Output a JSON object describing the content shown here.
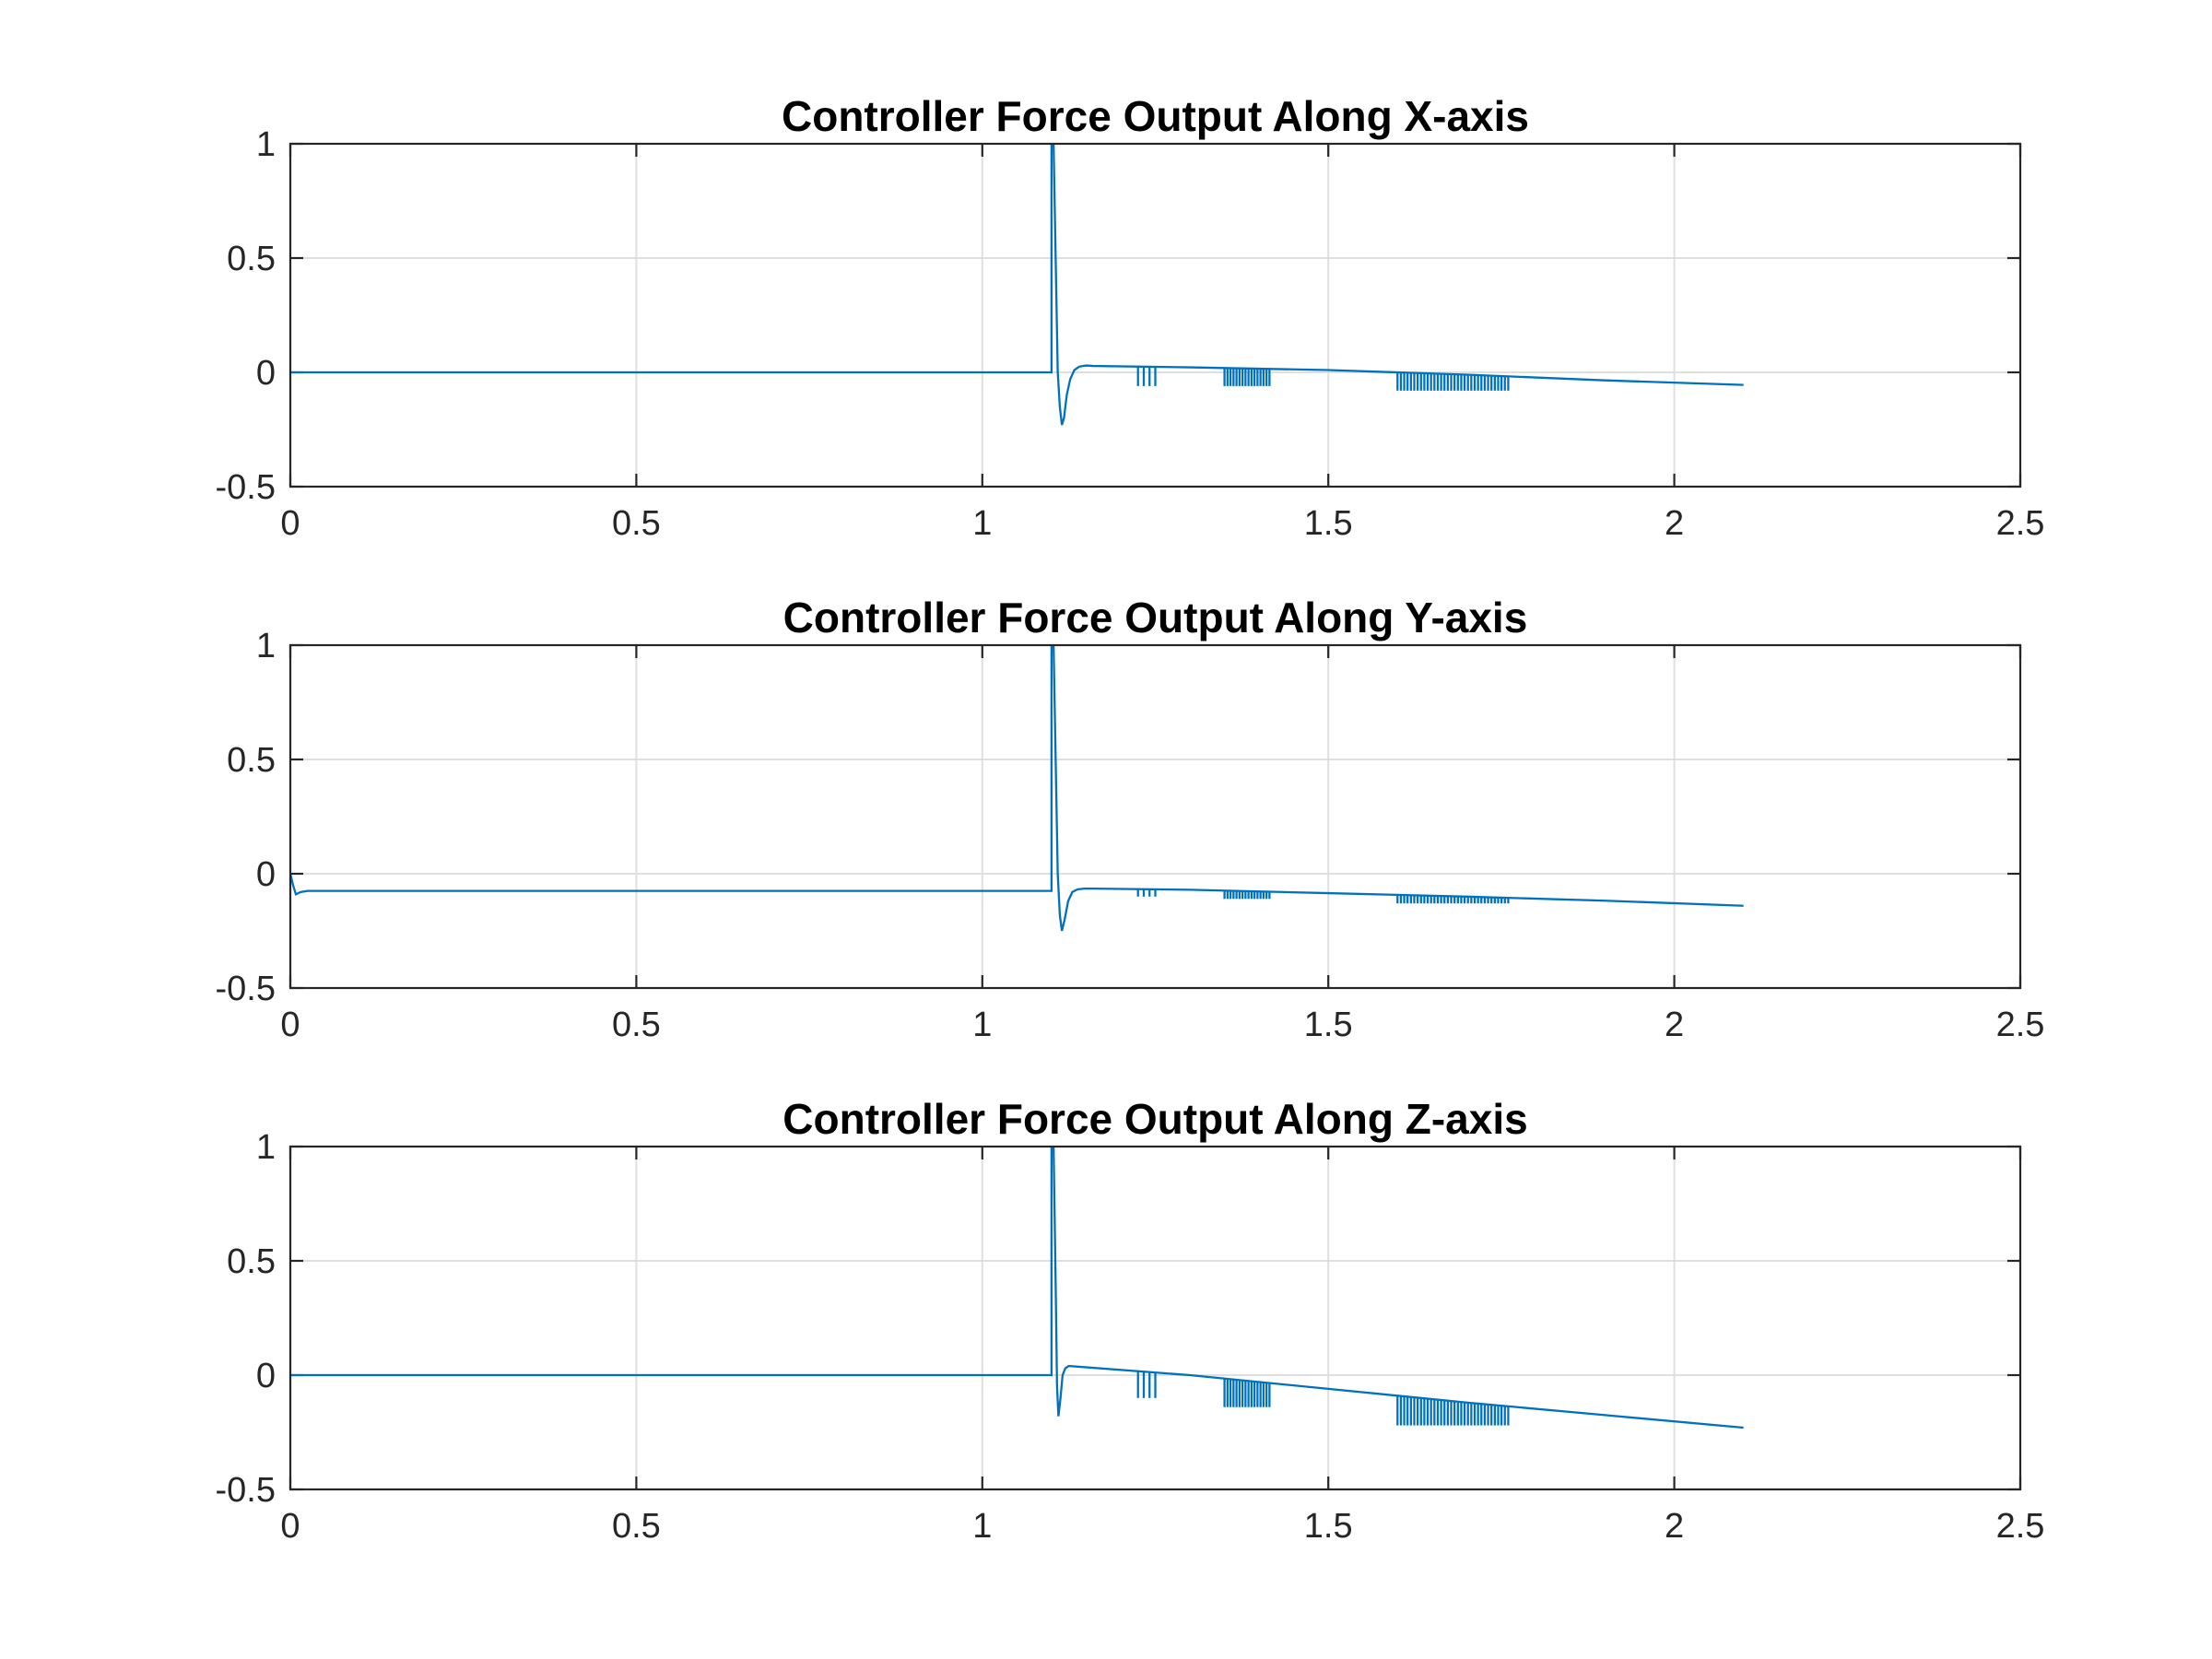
{
  "chart_data": [
    {
      "type": "line",
      "title": "Controller Force Output Along X-axis",
      "xlabel": "",
      "ylabel": "",
      "xlim": [
        0,
        2.5
      ],
      "ylim": [
        -0.5,
        1
      ],
      "xticks": [
        "0",
        "0.5",
        "1",
        "1.5",
        "2",
        "2.5"
      ],
      "yticks": [
        "1",
        "0.5",
        "0",
        "-0.5"
      ],
      "grid": true,
      "color": "#0072bd",
      "series": [
        {
          "x": [
            0,
            1.1,
            1.1,
            1.103,
            1.106,
            1.109,
            1.112,
            1.115,
            1.118,
            1.122,
            1.127,
            1.133,
            1.14,
            1.15,
            1.16,
            1.3,
            1.5,
            1.7,
            1.9,
            2.1
          ],
          "values": [
            0,
            0,
            1,
            1,
            0.5,
            0,
            -0.15,
            -0.23,
            -0.2,
            -0.1,
            -0.03,
            0.01,
            0.025,
            0.03,
            0.028,
            0.022,
            0.01,
            -0.01,
            -0.035,
            -0.055
          ]
        }
      ],
      "spikes": [
        {
          "x_start": 1.225,
          "x_end": 1.25,
          "count": 4,
          "bottom": -0.06
        },
        {
          "x_start": 1.35,
          "x_end": 1.415,
          "count": 16,
          "bottom": -0.06
        },
        {
          "x_start": 1.6,
          "x_end": 1.76,
          "count": 34,
          "bottom": -0.08
        }
      ]
    },
    {
      "type": "line",
      "title": "Controller Force Output Along Y-axis",
      "xlabel": "",
      "ylabel": "",
      "xlim": [
        0,
        2.5
      ],
      "ylim": [
        -0.5,
        1
      ],
      "xticks": [
        "0",
        "0.5",
        "1",
        "1.5",
        "2",
        "2.5"
      ],
      "yticks": [
        "1",
        "0.5",
        "0",
        "-0.5"
      ],
      "grid": true,
      "color": "#0072bd",
      "series": [
        {
          "x": [
            0,
            0.004,
            0.008,
            0.015,
            0.025,
            0.04,
            1.1,
            1.1,
            1.103,
            1.106,
            1.109,
            1.112,
            1.115,
            1.119,
            1.124,
            1.13,
            1.138,
            1.148,
            1.16,
            1.3,
            1.5,
            1.7,
            1.9,
            2.1
          ],
          "values": [
            0,
            -0.05,
            -0.09,
            -0.08,
            -0.075,
            -0.075,
            -0.075,
            1,
            1,
            0.5,
            0,
            -0.18,
            -0.25,
            -0.2,
            -0.12,
            -0.08,
            -0.068,
            -0.065,
            -0.065,
            -0.07,
            -0.085,
            -0.1,
            -0.118,
            -0.14
          ]
        }
      ],
      "spikes": [
        {
          "x_start": 1.225,
          "x_end": 1.25,
          "count": 4,
          "bottom": -0.1
        },
        {
          "x_start": 1.35,
          "x_end": 1.415,
          "count": 16,
          "bottom": -0.11
        },
        {
          "x_start": 1.6,
          "x_end": 1.76,
          "count": 34,
          "bottom": -0.13
        }
      ]
    },
    {
      "type": "line",
      "title": "Controller Force Output Along Z-axis",
      "xlabel": "",
      "ylabel": "",
      "xlim": [
        0,
        2.5
      ],
      "ylim": [
        -0.5,
        1
      ],
      "xticks": [
        "0",
        "0.5",
        "1",
        "1.5",
        "2",
        "2.5"
      ],
      "yticks": [
        "1",
        "0.5",
        "0",
        "-0.5"
      ],
      "grid": true,
      "color": "#0072bd",
      "series": [
        {
          "x": [
            0,
            1.1,
            1.1,
            1.103,
            1.106,
            1.108,
            1.11,
            1.113,
            1.116,
            1.12,
            1.125,
            1.3,
            1.5,
            1.7,
            1.9,
            2.1
          ],
          "values": [
            0,
            0,
            1,
            1,
            0.4,
            -0.05,
            -0.18,
            -0.1,
            0,
            0.03,
            0.04,
            0.0,
            -0.06,
            -0.12,
            -0.175,
            -0.23
          ]
        }
      ],
      "spikes": [
        {
          "x_start": 1.225,
          "x_end": 1.25,
          "count": 4,
          "bottom": -0.1
        },
        {
          "x_start": 1.35,
          "x_end": 1.415,
          "count": 16,
          "bottom": -0.14
        },
        {
          "x_start": 1.6,
          "x_end": 1.76,
          "count": 34,
          "bottom": -0.22
        }
      ]
    }
  ]
}
